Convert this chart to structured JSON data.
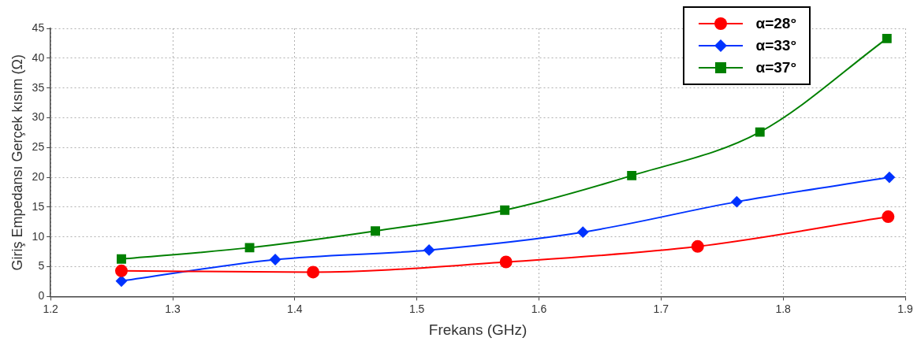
{
  "chart_data": {
    "type": "line",
    "xlabel": "Frekans (GHz)",
    "ylabel": "Giriş Empedansı Gerçek kısım (Ω)",
    "xlim": [
      1.2,
      1.9
    ],
    "xticks": [
      1.2,
      1.3,
      1.4,
      1.5,
      1.6,
      1.7,
      1.8,
      1.9
    ],
    "ylim": [
      0,
      45
    ],
    "yticks": [
      0,
      5,
      10,
      15,
      20,
      25,
      30,
      35,
      40,
      45
    ],
    "grid": true,
    "legend": "top right",
    "line_style": "solid",
    "series": [
      {
        "name": "α=28°",
        "color": "#ff0000",
        "marker": "circle",
        "x": [
          1.258,
          1.415,
          1.573,
          1.73,
          1.886
        ],
        "values": [
          4.3,
          4.1,
          5.8,
          8.4,
          13.4
        ]
      },
      {
        "name": "α=33°",
        "color": "#0033ff",
        "marker": "diamond",
        "x": [
          1.258,
          1.384,
          1.51,
          1.636,
          1.762,
          1.887
        ],
        "values": [
          2.6,
          6.2,
          7.8,
          10.8,
          15.9,
          20.0
        ]
      },
      {
        "name": "α=37°",
        "color": "#008000",
        "marker": "square",
        "x": [
          1.258,
          1.363,
          1.466,
          1.572,
          1.676,
          1.781,
          1.885
        ],
        "values": [
          6.3,
          8.2,
          11.0,
          14.5,
          20.3,
          27.6,
          43.3
        ]
      }
    ]
  }
}
